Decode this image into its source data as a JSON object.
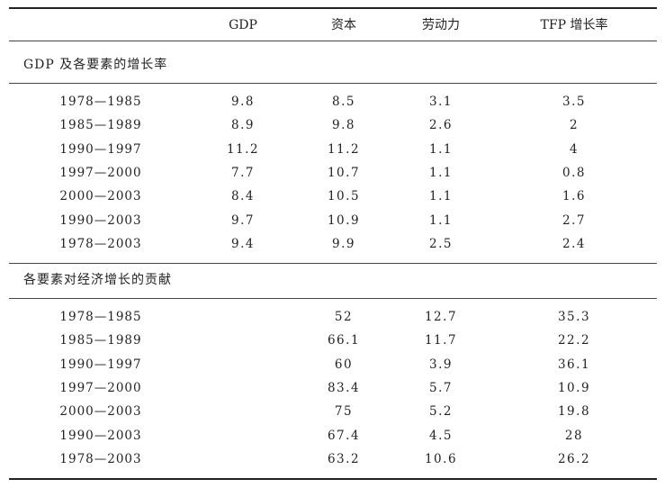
{
  "header": {
    "col_gdp": "GDP",
    "col_capital": "资本",
    "col_labor": "劳动力",
    "col_tfp": "TFP 增长率"
  },
  "section1": {
    "title": "GDP 及各要素的增长率",
    "rows": [
      {
        "period": "1978—1985",
        "gdp": "9.8",
        "capital": "8.5",
        "labor": "3.1",
        "tfp": "3.5"
      },
      {
        "period": "1985—1989",
        "gdp": "8.9",
        "capital": "9.8",
        "labor": "2.6",
        "tfp": "2"
      },
      {
        "period": "1990—1997",
        "gdp": "11.2",
        "capital": "11.2",
        "labor": "1.1",
        "tfp": "4"
      },
      {
        "period": "1997—2000",
        "gdp": "7.7",
        "capital": "10.7",
        "labor": "1.1",
        "tfp": "0.8"
      },
      {
        "period": "2000—2003",
        "gdp": "8.4",
        "capital": "10.5",
        "labor": "1.1",
        "tfp": "1.6"
      },
      {
        "period": "1990—2003",
        "gdp": "9.7",
        "capital": "10.9",
        "labor": "1.1",
        "tfp": "2.7"
      },
      {
        "period": "1978—2003",
        "gdp": "9.4",
        "capital": "9.9",
        "labor": "2.5",
        "tfp": "2.4"
      }
    ]
  },
  "section2": {
    "title": "各要素对经济增长的贡献",
    "rows": [
      {
        "period": "1978—1985",
        "gdp": "",
        "capital": "52",
        "labor": "12.7",
        "tfp": "35.3"
      },
      {
        "period": "1985—1989",
        "gdp": "",
        "capital": "66.1",
        "labor": "11.7",
        "tfp": "22.2"
      },
      {
        "period": "1990—1997",
        "gdp": "",
        "capital": "60",
        "labor": "3.9",
        "tfp": "36.1"
      },
      {
        "period": "1997—2000",
        "gdp": "",
        "capital": "83.4",
        "labor": "5.7",
        "tfp": "10.9"
      },
      {
        "period": "2000—2003",
        "gdp": "",
        "capital": "75",
        "labor": "5.2",
        "tfp": "19.8"
      },
      {
        "period": "1990—2003",
        "gdp": "",
        "capital": "67.4",
        "labor": "4.5",
        "tfp": "28"
      },
      {
        "period": "1978—2003",
        "gdp": "",
        "capital": "63.2",
        "labor": "10.6",
        "tfp": "26.2"
      }
    ]
  }
}
